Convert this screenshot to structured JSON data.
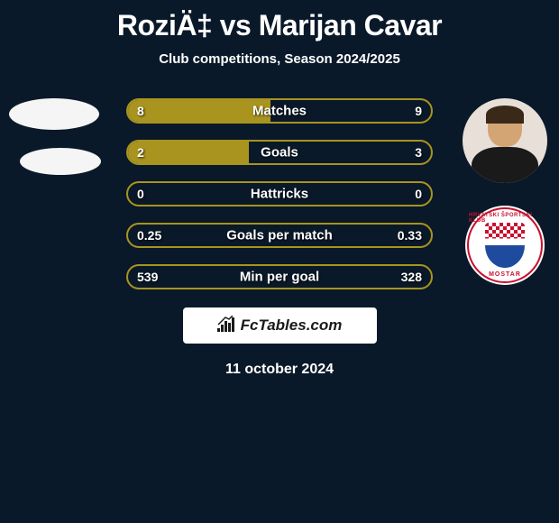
{
  "title": "RoziÄ‡ vs Marijan Cavar",
  "subtitle": "Club competitions, Season 2024/2025",
  "date": "11 october 2024",
  "brand": "FcTables.com",
  "colors": {
    "background": "#0a1929",
    "bar_fill": "#a8941f",
    "bar_border": "#a8941f",
    "text": "#ffffff",
    "brand_bg": "#ffffff",
    "brand_text": "#1a1a1a",
    "badge_red": "#c8102e",
    "badge_blue": "#1e4b9e"
  },
  "bars": [
    {
      "label": "Matches",
      "left_val": "8",
      "right_val": "9",
      "left_pct": 47,
      "right_pct": 0
    },
    {
      "label": "Goals",
      "left_val": "2",
      "right_val": "3",
      "left_pct": 40,
      "right_pct": 0
    },
    {
      "label": "Hattricks",
      "left_val": "0",
      "right_val": "0",
      "left_pct": 0,
      "right_pct": 0
    },
    {
      "label": "Goals per match",
      "left_val": "0.25",
      "right_val": "0.33",
      "left_pct": 0,
      "right_pct": 0
    },
    {
      "label": "Min per goal",
      "left_val": "539",
      "right_val": "328",
      "left_pct": 0,
      "right_pct": 0
    }
  ],
  "badge": {
    "text_top": "HRVATSKI ŠPORTSKI KLUB",
    "text_bottom": "MOSTAR"
  }
}
